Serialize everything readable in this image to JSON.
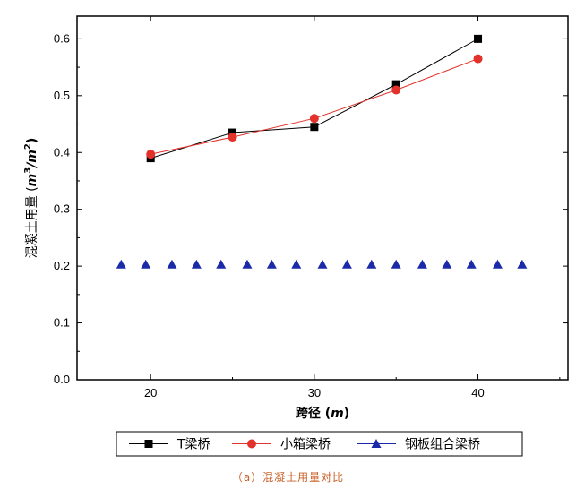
{
  "chart_data": {
    "type": "line",
    "xlabel": "跨径 (m)",
    "ylabel": "混凝土用量 (m³/m²)",
    "xlim": [
      15.5,
      45.5
    ],
    "ylim": [
      0,
      0.64
    ],
    "xticks": [
      20,
      30,
      40
    ],
    "yticks": [
      0.0,
      0.1,
      0.2,
      0.3,
      0.4,
      0.5,
      0.6
    ],
    "ytick_labels": [
      "0.0",
      "0.1",
      "0.2",
      "0.3",
      "0.4",
      "0.5",
      "0.6"
    ],
    "grid": false,
    "legend_position": "bottom",
    "series": [
      {
        "name": "T梁桥",
        "marker": "square",
        "color": "#000000",
        "points": [
          [
            20,
            0.39
          ],
          [
            25,
            0.435
          ],
          [
            30,
            0.445
          ],
          [
            35,
            0.52
          ],
          [
            40,
            0.6
          ]
        ]
      },
      {
        "name": "小箱梁桥",
        "marker": "circle",
        "color": "#e3322b",
        "points": [
          [
            20,
            0.397
          ],
          [
            25,
            0.427
          ],
          [
            30,
            0.46
          ],
          [
            35,
            0.51
          ],
          [
            40,
            0.565
          ]
        ]
      },
      {
        "name": "钢板组合梁桥",
        "marker": "triangle",
        "color": "#1b2aa8",
        "points": [
          [
            18.2,
            0.203
          ],
          [
            19.7,
            0.203
          ],
          [
            21.3,
            0.203
          ],
          [
            22.8,
            0.203
          ],
          [
            24.3,
            0.203
          ],
          [
            25.9,
            0.203
          ],
          [
            27.4,
            0.203
          ],
          [
            28.9,
            0.203
          ],
          [
            30.5,
            0.203
          ],
          [
            32.0,
            0.203
          ],
          [
            33.5,
            0.203
          ],
          [
            35.0,
            0.203
          ],
          [
            36.6,
            0.203
          ],
          [
            38.1,
            0.203
          ],
          [
            39.6,
            0.203
          ],
          [
            41.2,
            0.203
          ],
          [
            42.7,
            0.203
          ]
        ]
      }
    ]
  },
  "caption": "（a）混凝土用量对比"
}
